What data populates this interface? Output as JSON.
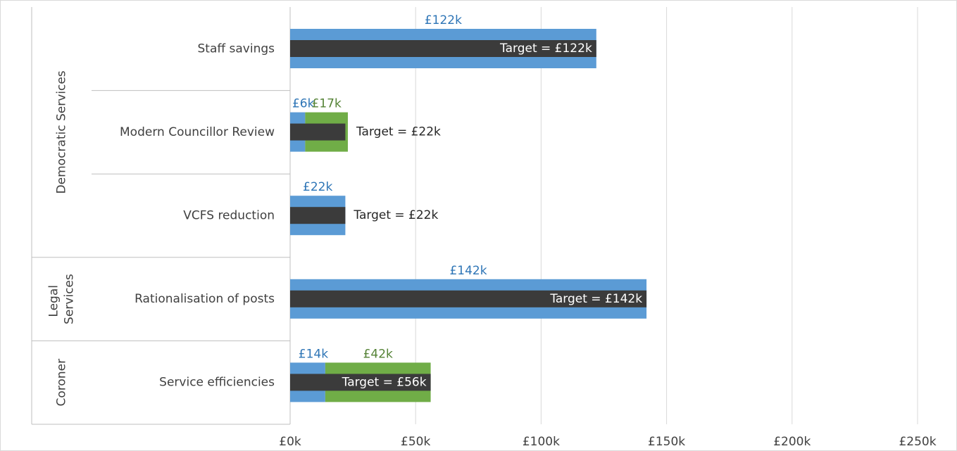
{
  "chart_data": {
    "type": "bar",
    "orientation": "horizontal",
    "groups": [
      {
        "label": "Democratic Services",
        "categories": [
          "Staff savings",
          "Modern Councillor Review",
          "VCFS reduction"
        ]
      },
      {
        "label": "Legal Services",
        "categories": [
          "Rationalisation of posts"
        ]
      },
      {
        "label": "Coroner",
        "categories": [
          "Service efficiencies"
        ]
      }
    ],
    "series": [
      {
        "color": "#5b9bd5",
        "label_color": "#2e75b6",
        "values": [
          122,
          6,
          22,
          142,
          14
        ],
        "value_labels": [
          "£122k",
          "£6k",
          "£22k",
          "£142k",
          "£14k"
        ]
      },
      {
        "color": "#70ad47",
        "label_color": "#548235",
        "values": [
          null,
          17,
          null,
          null,
          42
        ],
        "value_labels": [
          null,
          "£17k",
          null,
          null,
          "£42k"
        ]
      }
    ],
    "target": {
      "color": "#3b3b3b",
      "values": [
        122,
        22,
        22,
        142,
        56
      ],
      "value_labels": [
        "Target = £122k",
        "Target = £22k",
        "Target = £22k",
        "Target = £142k",
        "Target = £56k"
      ]
    },
    "xlim": [
      0,
      250
    ],
    "xticks": [
      {
        "value": 0,
        "label": "£0k"
      },
      {
        "value": 50,
        "label": "£50k"
      },
      {
        "value": 100,
        "label": "£100k"
      },
      {
        "value": 150,
        "label": "£150k"
      },
      {
        "value": 200,
        "label": "£200k"
      },
      {
        "value": 250,
        "label": "£250k"
      }
    ],
    "grid": true
  }
}
